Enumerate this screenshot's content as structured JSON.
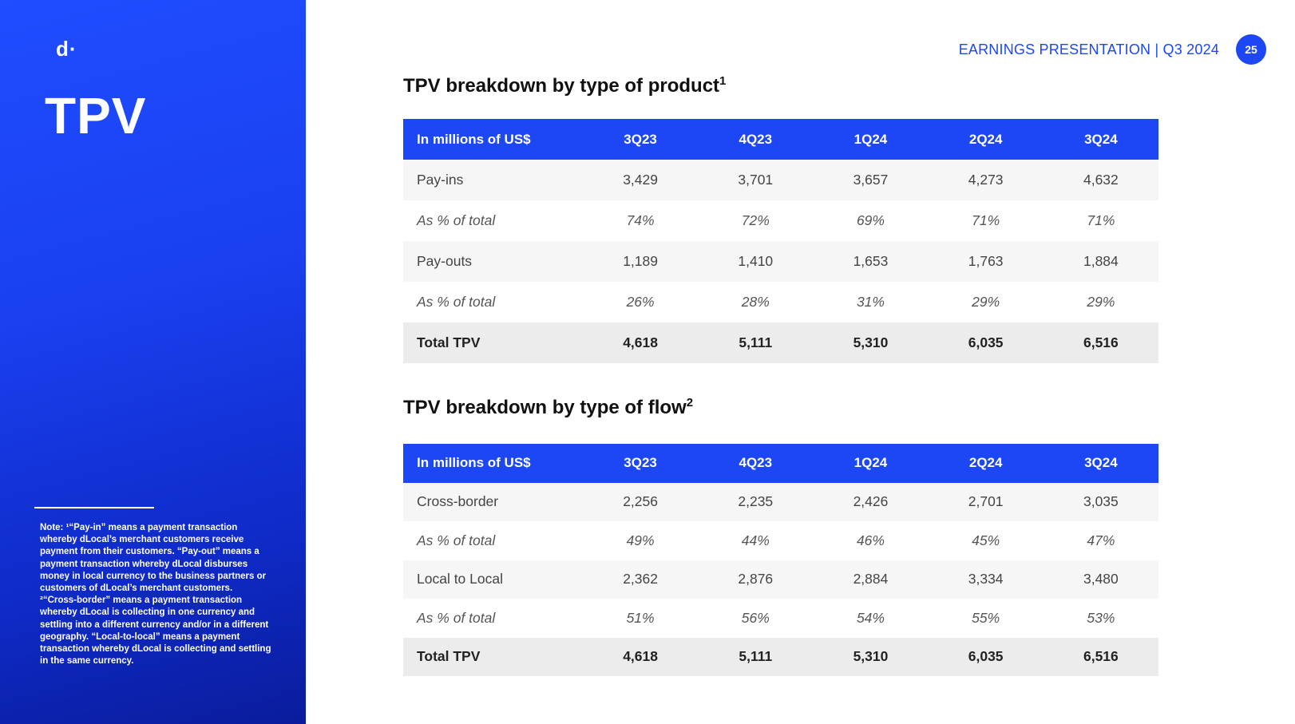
{
  "sidebar": {
    "logo": "d·",
    "title": "TPV",
    "note": [
      "Note: ¹“Pay-in” means a payment transaction whereby dLocal’s merchant customers receive payment from their customers. “Pay-out” means a payment transaction whereby dLocal disburses money in local currency to the business partners or customers of dLocal’s merchant customers.",
      "²“Cross-border” means a payment transaction whereby dLocal is collecting in one currency and settling into a different currency and/or in a different geography. “Local-to-local” means a payment transaction whereby dLocal is collecting and settling in the same currency."
    ]
  },
  "header": {
    "label": "EARNINGS PRESENTATION | Q3 2024",
    "page_number": "25"
  },
  "colors": {
    "accent": "#1d47f5"
  },
  "tables": [
    {
      "title": "TPV breakdown by type of product",
      "footnote": "1",
      "columns": [
        "In millions of US$",
        "3Q23",
        "4Q23",
        "1Q24",
        "2Q24",
        "3Q24"
      ],
      "rows": [
        {
          "type": "main",
          "cells": [
            "Pay-ins",
            "3,429",
            "3,701",
            "3,657",
            "4,273",
            "4,632"
          ]
        },
        {
          "type": "pct",
          "cells": [
            "As % of total",
            "74%",
            "72%",
            "69%",
            "71%",
            "71%"
          ]
        },
        {
          "type": "main",
          "cells": [
            "Pay-outs",
            "1,189",
            "1,410",
            "1,653",
            "1,763",
            "1,884"
          ]
        },
        {
          "type": "pct",
          "cells": [
            "As % of total",
            "26%",
            "28%",
            "31%",
            "29%",
            "29%"
          ]
        },
        {
          "type": "total",
          "cells": [
            "Total TPV",
            "4,618",
            "5,111",
            "5,310",
            "6,035",
            "6,516"
          ]
        }
      ]
    },
    {
      "title": "TPV breakdown by type of flow",
      "footnote": "2",
      "columns": [
        "In millions of US$",
        "3Q23",
        "4Q23",
        "1Q24",
        "2Q24",
        "3Q24"
      ],
      "rows": [
        {
          "type": "main",
          "cells": [
            "Cross-border",
            "2,256",
            "2,235",
            "2,426",
            "2,701",
            "3,035"
          ]
        },
        {
          "type": "pct",
          "cells": [
            "As % of total",
            "49%",
            "44%",
            "46%",
            "45%",
            "47%"
          ]
        },
        {
          "type": "main",
          "cells": [
            "Local to Local",
            "2,362",
            "2,876",
            "2,884",
            "3,334",
            "3,480"
          ]
        },
        {
          "type": "pct",
          "cells": [
            "As % of total",
            "51%",
            "56%",
            "54%",
            "55%",
            "53%"
          ]
        },
        {
          "type": "total",
          "cells": [
            "Total TPV",
            "4,618",
            "5,111",
            "5,310",
            "6,035",
            "6,516"
          ]
        }
      ]
    }
  ]
}
